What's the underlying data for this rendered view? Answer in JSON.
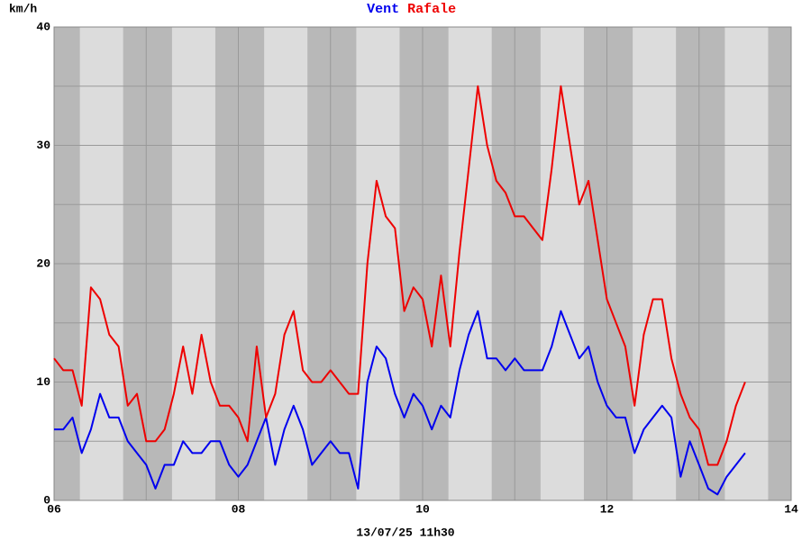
{
  "chart_data": {
    "type": "line",
    "y_label": "km/h",
    "x_label": "13/07/25 11h30",
    "x": [
      6.0,
      6.1,
      6.2,
      6.3,
      6.4,
      6.5,
      6.6,
      6.7,
      6.8,
      6.9,
      7.0,
      7.1,
      7.2,
      7.3,
      7.4,
      7.5,
      7.6,
      7.7,
      7.8,
      7.9,
      8.0,
      8.1,
      8.2,
      8.3,
      8.4,
      8.5,
      8.6,
      8.7,
      8.8,
      8.9,
      9.0,
      9.1,
      9.2,
      9.3,
      9.4,
      9.5,
      9.6,
      9.7,
      9.8,
      9.9,
      10.0,
      10.1,
      10.2,
      10.3,
      10.4,
      10.5,
      10.6,
      10.7,
      10.8,
      10.9,
      11.0,
      11.1,
      11.2,
      11.3,
      11.4,
      11.5,
      11.6,
      11.7,
      11.8,
      11.9,
      12.0,
      12.1,
      12.2,
      12.3,
      12.4,
      12.5,
      12.6,
      12.7,
      12.8,
      12.9,
      13.0,
      13.1,
      13.2,
      13.3,
      13.4,
      13.5
    ],
    "series": [
      {
        "name": "Vent",
        "color": "#0000ee",
        "values": [
          6,
          6,
          7,
          4,
          6,
          9,
          7,
          7,
          5,
          4,
          3,
          1,
          3,
          3,
          5,
          4,
          4,
          5,
          5,
          3,
          2,
          3,
          5,
          7,
          3,
          6,
          8,
          6,
          3,
          4,
          5,
          4,
          4,
          1,
          10,
          13,
          12,
          9,
          7,
          9,
          8,
          6,
          8,
          7,
          11,
          14,
          16,
          12,
          12,
          11,
          12,
          11,
          11,
          11,
          13,
          16,
          14,
          12,
          13,
          10,
          8,
          7,
          7,
          4,
          6,
          7,
          8,
          7,
          2,
          5,
          3,
          1,
          0.5,
          2,
          3,
          4
        ]
      },
      {
        "name": "Rafale",
        "color": "#ee0000",
        "values": [
          12,
          11,
          11,
          8,
          18,
          17,
          14,
          13,
          8,
          9,
          5,
          5,
          6,
          9,
          13,
          9,
          14,
          10,
          8,
          8,
          7,
          5,
          13,
          7,
          9,
          14,
          16,
          11,
          10,
          10,
          11,
          10,
          9,
          9,
          20,
          27,
          24,
          23,
          16,
          18,
          17,
          13,
          19,
          13,
          21,
          28,
          35,
          30,
          27,
          26,
          24,
          24,
          23,
          22,
          28,
          35,
          30,
          25,
          27,
          22,
          17,
          15,
          13,
          8,
          14,
          17,
          17,
          12,
          9,
          7,
          6,
          3,
          3,
          5,
          8,
          10
        ]
      }
    ],
    "xlim": [
      6,
      14
    ],
    "xticks": [
      {
        "value": 6,
        "label": "06"
      },
      {
        "value": 8,
        "label": "08"
      },
      10,
      12,
      14
    ],
    "xminorticks": [
      7,
      9,
      11,
      13
    ],
    "ylim": [
      0,
      40
    ],
    "yticks": [
      0,
      10,
      20,
      30,
      40
    ],
    "yminorticks": [
      5,
      15,
      25,
      35
    ],
    "grid": true
  }
}
